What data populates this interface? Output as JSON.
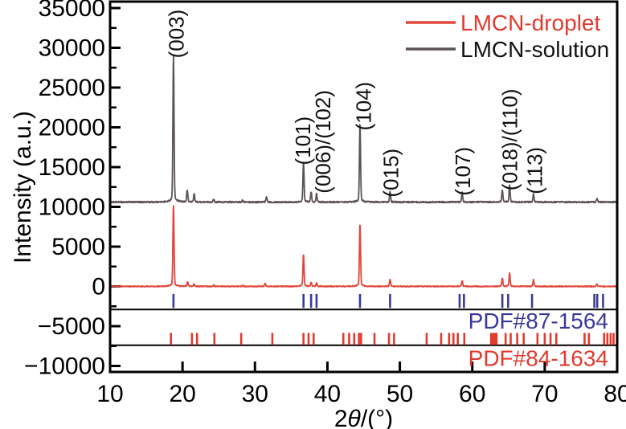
{
  "figure": {
    "background": "#ffffff",
    "axis_color": "#000000"
  },
  "chart_data": {
    "type": "line",
    "title": "",
    "xlabel": "2θ/(°)",
    "ylabel": "Intensity (a.u.)",
    "xlim": [
      10,
      80
    ],
    "ylim": [
      -10800,
      36100
    ],
    "x_ticks": [
      10,
      20,
      30,
      40,
      50,
      60,
      70,
      80
    ],
    "y_ticks": [
      -10000,
      -5000,
      0,
      5000,
      10000,
      15000,
      20000,
      25000,
      30000,
      35000
    ],
    "y_minor_tick_step": 2500,
    "grid": "off",
    "legend_position": "top-right",
    "series": [
      {
        "name": "LMCN-droplet",
        "color": "#E2463A",
        "label_color": "#E23A2E",
        "baseline": 0,
        "noise": 60,
        "peaks": [
          [
            18.75,
            9700
          ],
          [
            20.7,
            550
          ],
          [
            21.6,
            280
          ],
          [
            24.3,
            150
          ],
          [
            28.3,
            120
          ],
          [
            31.4,
            350
          ],
          [
            36.7,
            3850
          ],
          [
            37.75,
            500
          ],
          [
            38.5,
            400
          ],
          [
            44.5,
            7600
          ],
          [
            48.65,
            800
          ],
          [
            58.6,
            700
          ],
          [
            64.15,
            1000
          ],
          [
            65.15,
            1600
          ],
          [
            68.45,
            800
          ],
          [
            77.2,
            250
          ]
        ]
      },
      {
        "name": "LMCN-solution",
        "color": "#5C5454",
        "label_color": "#121212",
        "baseline": 10600,
        "noise": 90,
        "peaks": [
          [
            18.75,
            17600
          ],
          [
            20.65,
            1450
          ],
          [
            21.6,
            1000
          ],
          [
            24.3,
            350
          ],
          [
            28.3,
            250
          ],
          [
            31.6,
            650
          ],
          [
            36.7,
            4800
          ],
          [
            37.75,
            1200
          ],
          [
            38.5,
            1050
          ],
          [
            44.5,
            9500
          ],
          [
            48.65,
            1250
          ],
          [
            58.6,
            1150
          ],
          [
            64.15,
            1500
          ],
          [
            65.15,
            2050
          ],
          [
            68.45,
            1050
          ],
          [
            77.2,
            450
          ]
        ]
      }
    ],
    "peak_labels": [
      {
        "text": "(003)",
        "two_theta": 19.1,
        "anchor_value": 28700
      },
      {
        "text": "(101)",
        "two_theta": 36.55,
        "anchor_value": 15250
      },
      {
        "text": "(006)/(102)",
        "two_theta": 39.35,
        "anchor_value": 11700
      },
      {
        "text": "(104)",
        "two_theta": 44.95,
        "anchor_value": 19600
      },
      {
        "text": "(015)",
        "two_theta": 48.7,
        "anchor_value": 11200
      },
      {
        "text": "(107)",
        "two_theta": 58.65,
        "anchor_value": 11400
      },
      {
        "text": "(018)/(110)",
        "two_theta": 65.15,
        "anchor_value": 12050
      },
      {
        "text": "(113)",
        "two_theta": 68.6,
        "anchor_value": 11600
      }
    ],
    "separator_values": [
      -2900,
      -7400
    ],
    "reference_patterns": [
      {
        "name": "PDF#87-1564",
        "color": "#39399B",
        "tick_values": [
          -950,
          -2700
        ],
        "positions": [
          18.75,
          36.7,
          37.75,
          38.5,
          44.5,
          48.65,
          58.25,
          58.85,
          64.15,
          64.95,
          68.25,
          76.85,
          77.25,
          78.05
        ]
      },
      {
        "name": "PDF#84-1634",
        "color": "#E23A2E",
        "tick_values": [
          -5850,
          -7350
        ],
        "positions": [
          18.4,
          21.3,
          22.0,
          24.4,
          28.1,
          32.4,
          36.7,
          37.4,
          38.1,
          42.2,
          43.0,
          43.7,
          44.35,
          44.65,
          46.5,
          48.5,
          49.2,
          53.7,
          55.7,
          56.8,
          57.4,
          58.0,
          58.9,
          62.6,
          62.85,
          63.1,
          63.35,
          64.6,
          65.3,
          66.2,
          67.1,
          69.0,
          70.0,
          70.8,
          71.6,
          75.5,
          76.1,
          78.2,
          78.65,
          79.1,
          79.5
        ]
      }
    ]
  }
}
